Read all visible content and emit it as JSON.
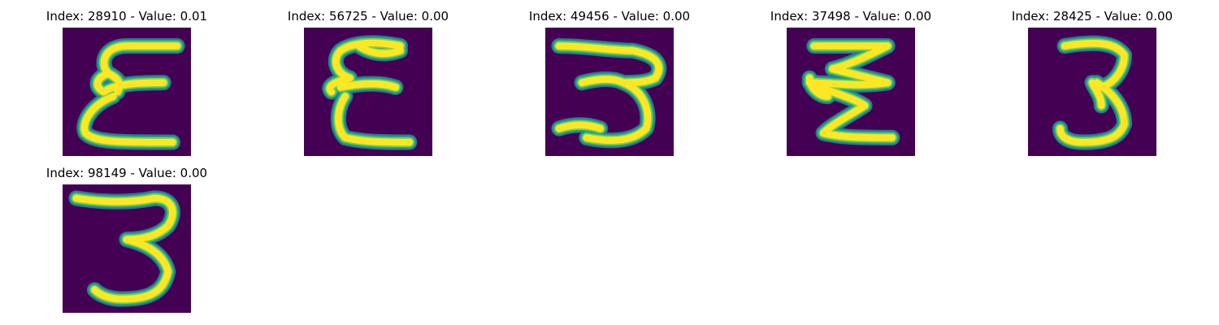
{
  "colors": {
    "background": "#440154",
    "stroke_core": "#fde725",
    "stroke_mid": "#7ad151",
    "stroke_edge": "#22a884",
    "stroke_halo": "#2a788e"
  },
  "panels": [
    {
      "index": "28910",
      "value": "0.01",
      "title": "Index: 28910 - Value: 0.01",
      "glyph": "epsilon-like handwritten digit 3 (mirrored)"
    },
    {
      "index": "56725",
      "value": "0.00",
      "title": "Index: 56725 - Value: 0.00",
      "glyph": "epsilon-like handwritten digit 3 (mirrored)"
    },
    {
      "index": "49456",
      "value": "0.00",
      "title": "Index: 49456 - Value: 0.00",
      "glyph": "handwritten digit 3"
    },
    {
      "index": "37498",
      "value": "0.00",
      "title": "Index: 37498 - Value: 0.00",
      "glyph": "zigzag handwritten digit 3"
    },
    {
      "index": "28425",
      "value": "0.00",
      "title": "Index: 28425 - Value: 0.00",
      "glyph": "handwritten digit 3"
    },
    {
      "index": "98149",
      "value": "0.00",
      "title": "Index: 98149 - Value: 0.00",
      "glyph": "handwritten digit 3"
    }
  ]
}
